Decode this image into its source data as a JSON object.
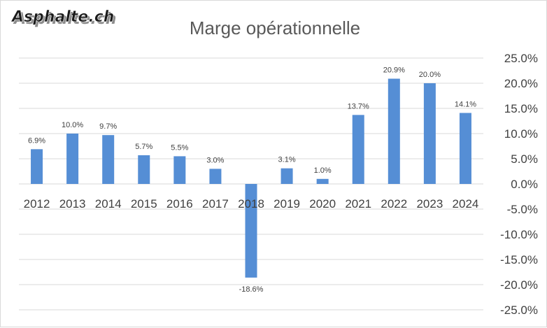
{
  "logo": {
    "text": "Asphalte.ch"
  },
  "colors": {
    "bar": "#558ed5",
    "grid": "#d9d9d9",
    "text": "#404040",
    "title": "#595959"
  },
  "chart_data": {
    "type": "bar",
    "title": "Marge opérationnelle",
    "categories": [
      "2012",
      "2013",
      "2014",
      "2015",
      "2016",
      "2017",
      "2018",
      "2019",
      "2020",
      "2021",
      "2022",
      "2023",
      "2024"
    ],
    "values": [
      6.9,
      10.0,
      9.7,
      5.7,
      5.5,
      3.0,
      -18.6,
      3.1,
      1.0,
      13.7,
      20.9,
      20.0,
      14.1
    ],
    "value_labels": [
      "6.9%",
      "10.0%",
      "9.7%",
      "5.7%",
      "5.5%",
      "3.0%",
      "-18.6%",
      "3.1%",
      "1.0%",
      "13.7%",
      "20.9%",
      "20.0%",
      "14.1%"
    ],
    "y_ticks": [
      25,
      20,
      15,
      10,
      5,
      0,
      -5,
      -10,
      -15,
      -20,
      -25
    ],
    "y_tick_labels": [
      "25.0%",
      "20.0%",
      "15.0%",
      "10.0%",
      "5.0%",
      "0.0%",
      "-5.0%",
      "-10.0%",
      "-15.0%",
      "-20.0%",
      "-25.0%"
    ],
    "ylim": [
      -25,
      25
    ],
    "y_axis_position": "right",
    "grid": true,
    "legend": false
  }
}
